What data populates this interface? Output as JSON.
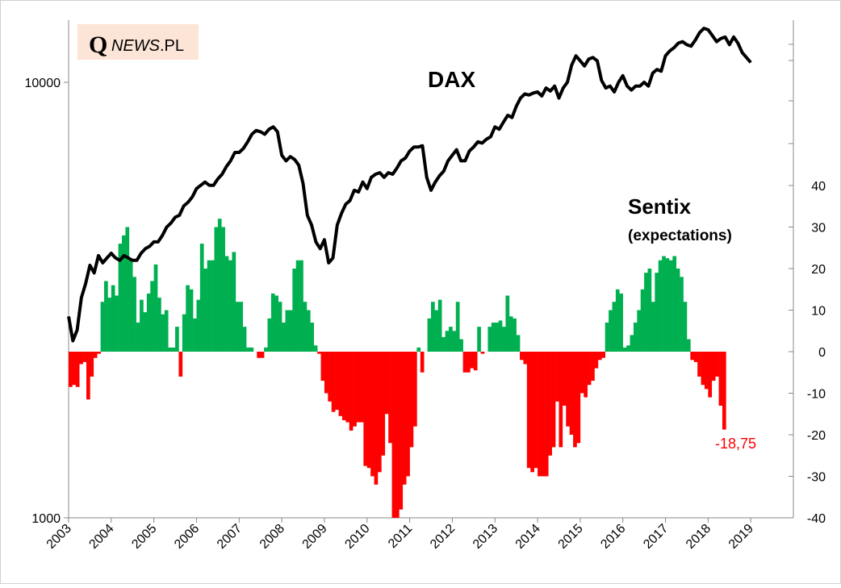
{
  "logo": {
    "q": "Q",
    "news": "NEWS",
    "pl": ".PL",
    "background": "#fce4d6"
  },
  "chart_data": {
    "type": "bar+line",
    "title": "DAX",
    "sentix_title": "Sentix",
    "sentix_subtitle": "(expectations)",
    "last_value_label": "-18,75",
    "colors": {
      "positive": "#00b050",
      "negative": "#ff0000",
      "dax_line": "#000000",
      "last_label": "#ff0000"
    },
    "x_axis": {
      "min": 2003,
      "max": 2020,
      "ticks": [
        "2003",
        "2004",
        "2005",
        "2006",
        "2007",
        "2008",
        "2009",
        "2010",
        "2011",
        "2012",
        "2013",
        "2014",
        "2015",
        "2016",
        "2017",
        "2018",
        "2019"
      ]
    },
    "y_left": {
      "scale": "log",
      "min": 1000,
      "max": 15000,
      "ticks": [
        "1000",
        "10000"
      ]
    },
    "y_right": {
      "min": -40,
      "max": 40,
      "ticks": [
        "40",
        "30",
        "20",
        "10",
        "0",
        "-10",
        "-20",
        "-30",
        "-40"
      ]
    },
    "dax_series": {
      "name": "DAX",
      "x": [
        2003.0,
        2003.1,
        2003.2,
        2003.3,
        2003.4,
        2003.5,
        2003.6,
        2003.7,
        2003.8,
        2003.9,
        2004.0,
        2004.1,
        2004.2,
        2004.3,
        2004.4,
        2004.5,
        2004.6,
        2004.7,
        2004.8,
        2004.9,
        2005.0,
        2005.1,
        2005.2,
        2005.3,
        2005.4,
        2005.5,
        2005.6,
        2005.7,
        2005.8,
        2005.9,
        2006.0,
        2006.1,
        2006.2,
        2006.3,
        2006.4,
        2006.5,
        2006.6,
        2006.7,
        2006.8,
        2006.9,
        2007.0,
        2007.1,
        2007.2,
        2007.3,
        2007.4,
        2007.5,
        2007.6,
        2007.7,
        2007.8,
        2007.9,
        2008.0,
        2008.1,
        2008.2,
        2008.3,
        2008.4,
        2008.5,
        2008.6,
        2008.7,
        2008.8,
        2008.9,
        2009.0,
        2009.1,
        2009.2,
        2009.3,
        2009.4,
        2009.5,
        2009.6,
        2009.7,
        2009.8,
        2009.9,
        2010.0,
        2010.1,
        2010.2,
        2010.3,
        2010.4,
        2010.5,
        2010.6,
        2010.7,
        2010.8,
        2010.9,
        2011.0,
        2011.1,
        2011.2,
        2011.3,
        2011.4,
        2011.5,
        2011.6,
        2011.7,
        2011.8,
        2011.9,
        2012.0,
        2012.1,
        2012.2,
        2012.3,
        2012.4,
        2012.5,
        2012.6,
        2012.7,
        2012.8,
        2012.9,
        2013.0,
        2013.1,
        2013.2,
        2013.3,
        2013.4,
        2013.5,
        2013.6,
        2013.7,
        2013.8,
        2013.9,
        2014.0,
        2014.1,
        2014.2,
        2014.3,
        2014.4,
        2014.5,
        2014.6,
        2014.7,
        2014.8,
        2014.9,
        2015.0,
        2015.1,
        2015.2,
        2015.3,
        2015.4,
        2015.5,
        2015.6,
        2015.7,
        2015.8,
        2015.9,
        2016.0,
        2016.1,
        2016.2,
        2016.3,
        2016.4,
        2016.5,
        2016.6,
        2016.7,
        2016.8,
        2016.9,
        2017.0,
        2017.1,
        2017.2,
        2017.3,
        2017.4,
        2017.5,
        2017.6,
        2017.7,
        2017.8,
        2017.9,
        2018.0,
        2018.1,
        2018.2,
        2018.3,
        2018.4,
        2018.5,
        2018.6,
        2018.7,
        2018.8,
        2018.9,
        2019.0
      ],
      "values": [
        2900,
        2550,
        2700,
        3200,
        3450,
        3800,
        3650,
        4000,
        3850,
        3950,
        4050,
        3950,
        3900,
        4000,
        3950,
        3900,
        3900,
        4050,
        4150,
        4200,
        4300,
        4300,
        4450,
        4650,
        4750,
        4900,
        4950,
        5200,
        5300,
        5450,
        5700,
        5800,
        5900,
        5800,
        5800,
        6000,
        6150,
        6400,
        6600,
        6900,
        6900,
        7050,
        7300,
        7600,
        7750,
        7700,
        7600,
        7800,
        7900,
        7700,
        6800,
        6600,
        6750,
        6650,
        6450,
        5850,
        4950,
        4700,
        4300,
        4150,
        4350,
        3850,
        3950,
        4700,
        5000,
        5250,
        5350,
        5650,
        5600,
        5900,
        5700,
        6050,
        6150,
        6200,
        6050,
        6200,
        6150,
        6350,
        6600,
        6700,
        6950,
        7100,
        7100,
        7150,
        6050,
        5650,
        5900,
        6100,
        6250,
        6600,
        6800,
        7000,
        6600,
        6600,
        6950,
        7100,
        7300,
        7250,
        7400,
        7500,
        7900,
        7800,
        8100,
        8400,
        8300,
        8800,
        9200,
        9400,
        9350,
        9450,
        9500,
        9300,
        9700,
        9550,
        9800,
        9200,
        9700,
        10000,
        10950,
        11500,
        11200,
        10900,
        11300,
        11400,
        11200,
        10100,
        9700,
        9800,
        9500,
        10000,
        10350,
        9800,
        9600,
        9800,
        9800,
        10000,
        9800,
        10500,
        10700,
        10600,
        11500,
        11800,
        12000,
        12300,
        12400,
        12200,
        12100,
        12500,
        13000,
        13300,
        13200,
        12800,
        12400,
        12600,
        12700,
        12200,
        12700,
        12300,
        11700,
        11400,
        11100
      ],
      "comment": "approximate monthly closing levels read from log axis"
    },
    "sentix_series": {
      "name": "Sentix",
      "x_start": 2003.0,
      "step": 0.0833333,
      "values": [
        -8.5,
        -8,
        -8.5,
        -3,
        -2.5,
        -11.5,
        -6,
        -1.5,
        -0.5,
        12,
        17,
        13,
        16,
        13.5,
        26,
        28,
        30,
        22,
        18,
        7,
        12.5,
        9.5,
        14,
        17,
        21,
        13,
        9,
        10,
        1,
        1,
        6,
        -6,
        9,
        16,
        15,
        8,
        12.5,
        26,
        20,
        22,
        22,
        30,
        32,
        30,
        23,
        22,
        24,
        12,
        12,
        6,
        1,
        1,
        0,
        -1.5,
        -1.5,
        1,
        8,
        14,
        13.5,
        12,
        7,
        10,
        10,
        20,
        22,
        22,
        12,
        10,
        7,
        1.5,
        -0.5,
        -7,
        -10,
        -12,
        -14.5,
        -14,
        -15.5,
        -16.5,
        -17,
        -19,
        -18,
        -17,
        -17,
        -27.5,
        -28,
        -30,
        -32,
        -29,
        -25,
        -15,
        -22,
        -40,
        -40,
        -38,
        -32,
        -30,
        -23,
        -18,
        1,
        -5,
        0,
        8,
        12,
        10,
        12.5,
        3.5,
        5,
        6,
        5,
        12,
        3,
        -5,
        -5,
        -4,
        -4.5,
        6,
        -0.5,
        0,
        6,
        7,
        7,
        7.5,
        6,
        13.5,
        8.5,
        8,
        4,
        -2,
        -3,
        -28,
        -29,
        -28,
        -30,
        -30,
        -30,
        -25,
        -23,
        -12,
        -23,
        -13,
        -18,
        -20,
        -23,
        -22,
        -10,
        -11,
        -8,
        -7,
        -4,
        -2,
        -1.5,
        7,
        10,
        12,
        15,
        14,
        1,
        1.5,
        4,
        7,
        10,
        15,
        19,
        20,
        12,
        19,
        22,
        23,
        22.5,
        22,
        23,
        20,
        18,
        12,
        3,
        -2,
        -2.5,
        -6,
        -8,
        -9,
        -11,
        -7,
        -6,
        -13,
        -18.75
      ],
      "last_value": -18.75
    }
  }
}
